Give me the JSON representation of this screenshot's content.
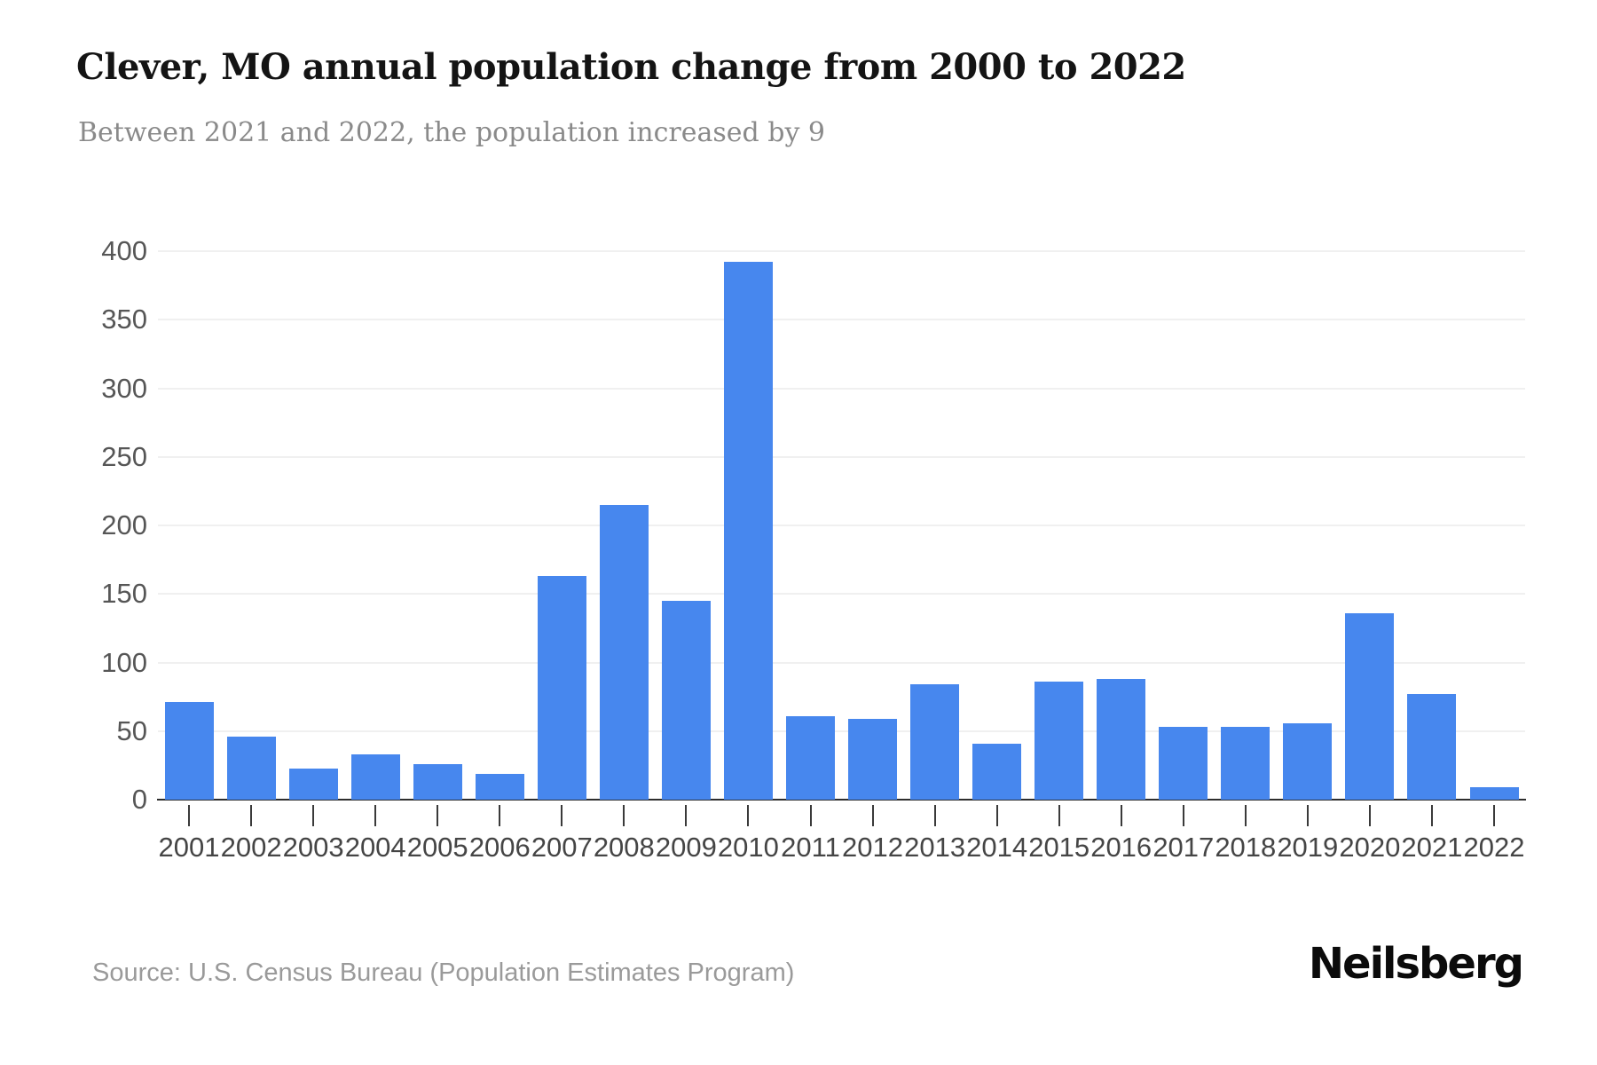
{
  "chart_data": {
    "type": "bar",
    "title": "Clever, MO annual population change from 2000 to 2022",
    "subtitle": "Between 2021 and 2022, the population increased by 9",
    "categories": [
      "2001",
      "2002",
      "2003",
      "2004",
      "2005",
      "2006",
      "2007",
      "2008",
      "2009",
      "2010",
      "2011",
      "2012",
      "2013",
      "2014",
      "2015",
      "2016",
      "2017",
      "2018",
      "2019",
      "2020",
      "2021",
      "2022"
    ],
    "values": [
      71,
      46,
      23,
      33,
      26,
      19,
      163,
      215,
      145,
      392,
      61,
      59,
      84,
      41,
      86,
      88,
      53,
      53,
      56,
      136,
      77,
      9
    ],
    "xlabel": "",
    "ylabel": "",
    "ylim": [
      0,
      400
    ],
    "ytick_step": 50,
    "grid": true,
    "legend": false,
    "bar_color": "#4787ee"
  },
  "footer": {
    "source": "Source: U.S. Census Bureau (Population Estimates Program)",
    "brand": "Neilsberg"
  }
}
